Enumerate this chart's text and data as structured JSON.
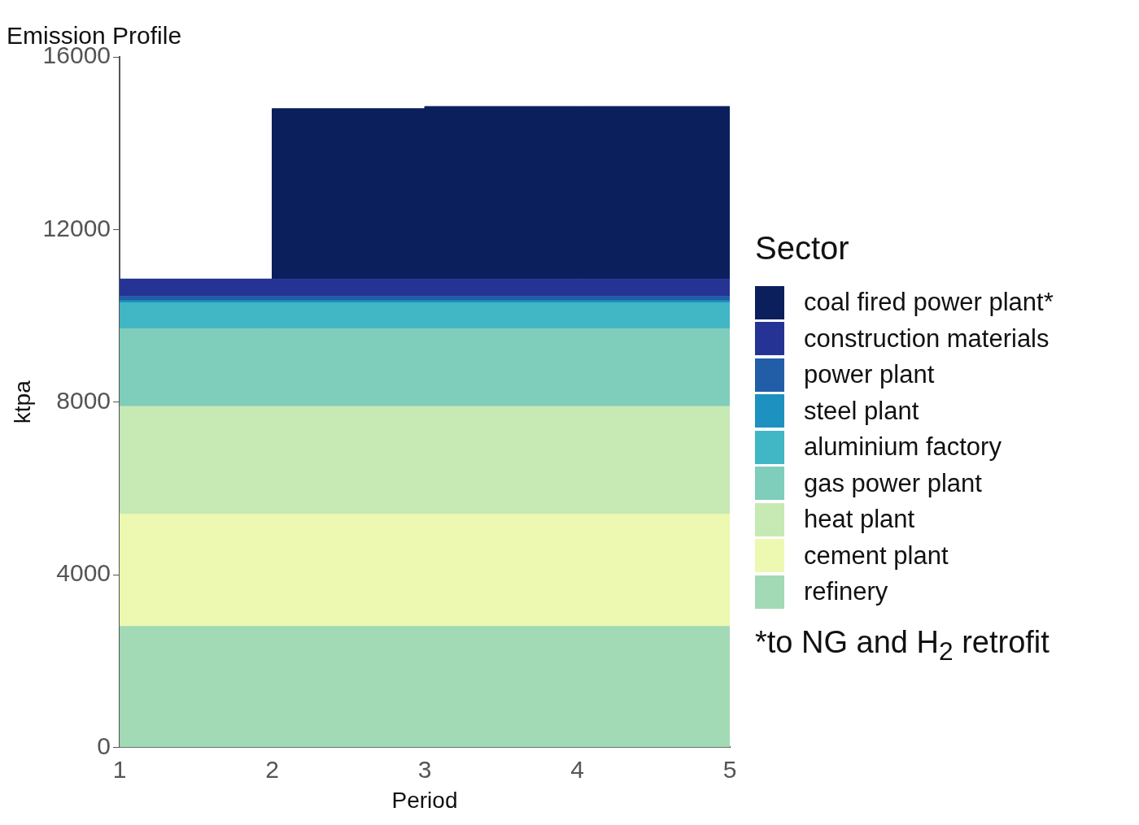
{
  "chart_data": {
    "type": "area",
    "title": "Emission Profile",
    "xlabel": "Period",
    "ylabel": "ktpa",
    "legend_title": "Sector",
    "stacked": true,
    "legend": "right",
    "grid": false,
    "x": [
      1,
      2,
      2,
      3,
      3,
      4,
      5
    ],
    "xlim": [
      1,
      5
    ],
    "xticks": [
      1,
      2,
      3,
      4,
      5
    ],
    "ylim": [
      0,
      16000
    ],
    "yticks": [
      0,
      4000,
      8000,
      12000,
      16000
    ],
    "series": [
      {
        "name": "refinery",
        "color": "#a1dab4",
        "values": [
          2800,
          2800,
          2800,
          2800,
          2800,
          2800,
          2800
        ]
      },
      {
        "name": "cement plant",
        "color": "#edf8b1",
        "values": [
          2600,
          2600,
          2600,
          2600,
          2600,
          2600,
          2600
        ]
      },
      {
        "name": "heat plant",
        "color": "#c7e9b4",
        "values": [
          2500,
          2500,
          2500,
          2500,
          2500,
          2500,
          2500
        ]
      },
      {
        "name": "gas power plant",
        "color": "#7fcdbb",
        "values": [
          1800,
          1800,
          1800,
          1800,
          1800,
          1800,
          1800
        ]
      },
      {
        "name": "aluminium factory",
        "color": "#41b6c4",
        "values": [
          600,
          600,
          600,
          600,
          600,
          600,
          600
        ]
      },
      {
        "name": "steel plant",
        "color": "#1d91c0",
        "values": [
          50,
          50,
          50,
          50,
          50,
          50,
          50
        ]
      },
      {
        "name": "power plant",
        "color": "#225ea8",
        "values": [
          100,
          100,
          100,
          100,
          100,
          100,
          100
        ]
      },
      {
        "name": "construction materials",
        "color": "#253494",
        "values": [
          400,
          400,
          400,
          400,
          400,
          400,
          400
        ]
      },
      {
        "name": "coal fired power plant*",
        "color": "#0b1f5c",
        "values": [
          0,
          0,
          3950,
          3950,
          4000,
          4000,
          4000
        ]
      }
    ],
    "annotations": [
      "*to NG and H$_{2}$ retrofit"
    ]
  }
}
